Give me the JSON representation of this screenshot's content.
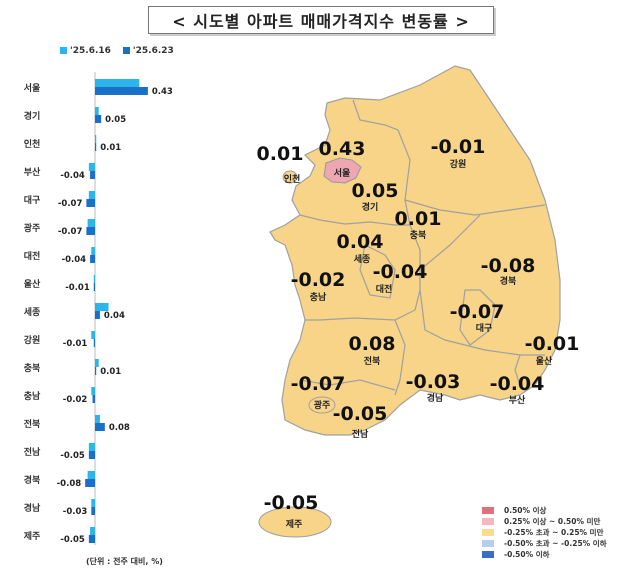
{
  "title": "< 시도별 아파트 매매가격지수 변동률 >",
  "unit_note": "(단위 : 전주 대비, %)",
  "colors": {
    "prev": "#2bb5ea",
    "curr": "#1a6fc9",
    "map_fill": "#f7d488",
    "map_high": "#eca7b3",
    "border": "#a0a0a0"
  },
  "chart_data": {
    "type": "bar",
    "orientation": "horizontal",
    "categories": [
      "서울",
      "경기",
      "인천",
      "부산",
      "대구",
      "광주",
      "대전",
      "울산",
      "세종",
      "강원",
      "충북",
      "충남",
      "전북",
      "전남",
      "경북",
      "경남",
      "제주"
    ],
    "series": [
      {
        "name": "'25.6.16",
        "values": [
          0.36,
          0.03,
          0.01,
          -0.05,
          -0.05,
          -0.06,
          -0.03,
          -0.01,
          0.11,
          -0.03,
          0.03,
          -0.03,
          0.04,
          -0.05,
          -0.06,
          -0.03,
          -0.04
        ]
      },
      {
        "name": "'25.6.23",
        "values": [
          0.43,
          0.05,
          0.01,
          -0.04,
          -0.07,
          -0.07,
          -0.04,
          -0.01,
          0.04,
          -0.01,
          0.01,
          -0.02,
          0.08,
          -0.05,
          -0.08,
          -0.03,
          -0.05
        ]
      }
    ],
    "data_labels": [
      "0.43",
      "0.05",
      "0.01",
      "-0.04",
      "-0.07",
      "-0.07",
      "-0.04",
      "-0.01",
      "0.04",
      "-0.01",
      "0.01",
      "-0.02",
      "0.08",
      "-0.05",
      "-0.08",
      "-0.03",
      "-0.05"
    ],
    "legend": "top"
  },
  "map": {
    "regions": [
      {
        "name": "서울",
        "value": "0.43"
      },
      {
        "name": "인천",
        "value": "0.01"
      },
      {
        "name": "경기",
        "value": "0.05"
      },
      {
        "name": "강원",
        "value": "-0.01"
      },
      {
        "name": "충북",
        "value": "0.01"
      },
      {
        "name": "세종",
        "value": "0.04"
      },
      {
        "name": "대전",
        "value": "-0.04"
      },
      {
        "name": "충남",
        "value": "-0.02"
      },
      {
        "name": "경북",
        "value": "-0.08"
      },
      {
        "name": "대구",
        "value": "-0.07"
      },
      {
        "name": "울산",
        "value": "-0.01"
      },
      {
        "name": "전북",
        "value": "0.08"
      },
      {
        "name": "광주",
        "value": "-0.07"
      },
      {
        "name": "전남",
        "value": "-0.05"
      },
      {
        "name": "경남",
        "value": "-0.03"
      },
      {
        "name": "부산",
        "value": "-0.04"
      },
      {
        "name": "제주",
        "value": "-0.05"
      }
    ],
    "legend": [
      {
        "label": "0.50% 이상",
        "color": "#e0707a"
      },
      {
        "label": "0.25% 이상 ~ 0.50% 미만",
        "color": "#f3b7c0"
      },
      {
        "label": "-0.25% 초과 ~ 0.25% 미만",
        "color": "#f9dc92"
      },
      {
        "label": "-0.50% 초과 ~ -0.25% 이하",
        "color": "#b7cdee"
      },
      {
        "label": "-0.50% 이하",
        "color": "#3a6cc8"
      }
    ]
  }
}
